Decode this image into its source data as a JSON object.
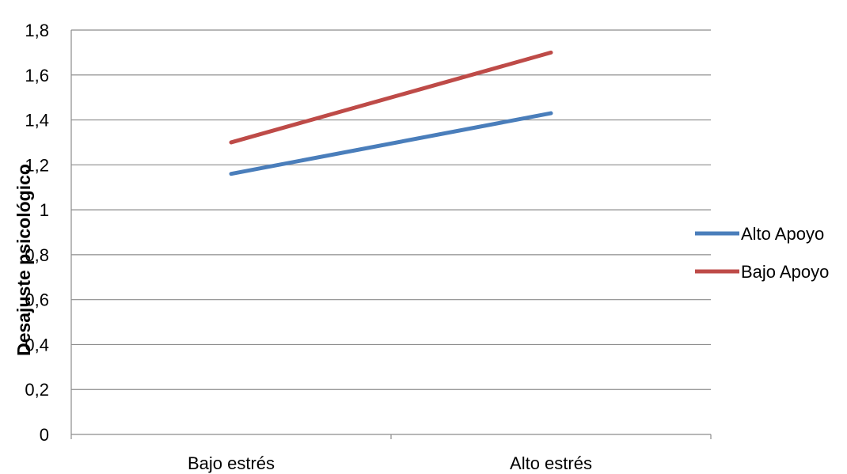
{
  "chart_data": {
    "type": "line",
    "title": "",
    "xlabel": "",
    "ylabel": "Desajuste psicológico",
    "categories": [
      "Bajo estrés",
      "Alto estrés"
    ],
    "series": [
      {
        "name": "Alto Apoyo",
        "values": [
          1.16,
          1.43
        ],
        "color": "#4a7ebb"
      },
      {
        "name": "Bajo Apoyo",
        "values": [
          1.3,
          1.7
        ],
        "color": "#be4b48"
      }
    ],
    "ylim": [
      0,
      1.8
    ],
    "yticks": [
      0,
      0.2,
      0.4,
      0.6,
      0.8,
      1,
      1.2,
      1.4,
      1.6,
      1.8
    ],
    "ytick_labels": [
      "0",
      "0,2",
      "0,4",
      "0,6",
      "0,8",
      "1",
      "1,2",
      "1,4",
      "1,6",
      "1,8"
    ],
    "grid": true,
    "legend": "right"
  }
}
